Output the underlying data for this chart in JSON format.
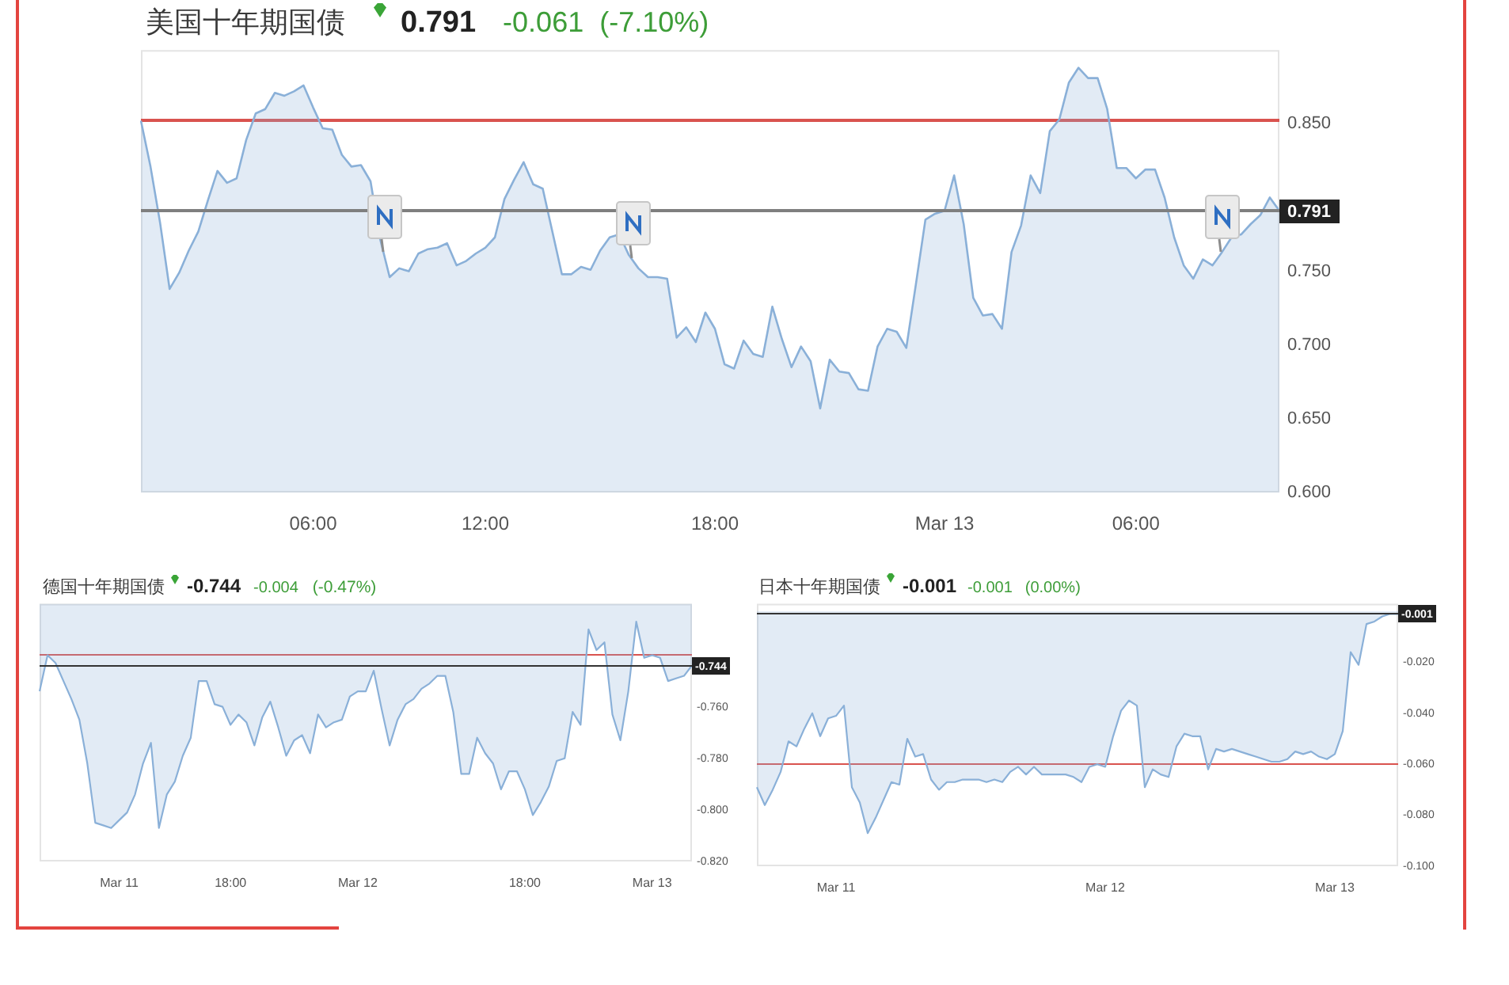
{
  "chart_data": [
    {
      "type": "area",
      "title": "美国十年期国债",
      "annotations": [
        "0.791",
        "-0.061",
        "(-7.10%)"
      ],
      "categories": [
        null,
        null,
        null,
        null,
        null,
        null,
        null,
        null,
        null,
        null,
        null,
        null,
        null,
        null,
        null,
        null,
        null,
        null,
        "06:00",
        null,
        null,
        null,
        null,
        null,
        null,
        null,
        null,
        null,
        null,
        null,
        null,
        null,
        null,
        null,
        null,
        null,
        "12:00",
        null,
        null,
        null,
        null,
        null,
        null,
        null,
        null,
        null,
        null,
        null,
        null,
        null,
        null,
        null,
        null,
        null,
        null,
        null,
        null,
        null,
        null,
        null,
        "18:00",
        null,
        null,
        null,
        null,
        null,
        null,
        null,
        null,
        null,
        null,
        null,
        null,
        null,
        null,
        null,
        null,
        null,
        null,
        null,
        null,
        null,
        null,
        null,
        "Mar 13",
        null,
        null,
        null,
        null,
        null,
        null,
        null,
        null,
        null,
        null,
        null,
        null,
        null,
        null,
        null,
        null,
        null,
        null,
        null,
        "06:00",
        null,
        null,
        null,
        null,
        null,
        null,
        null,
        null,
        null,
        null,
        null,
        null,
        null,
        null,
        null
      ],
      "series": [
        {
          "color": "#8ab0d8",
          "values": [
            0.852,
            0.821,
            0.783,
            0.738,
            0.749,
            0.764,
            0.777,
            0.798,
            0.818,
            0.81,
            0.813,
            0.839,
            0.857,
            0.86,
            0.871,
            0.869,
            0.872,
            0.876,
            0.861,
            0.847,
            0.846,
            0.829,
            0.821,
            0.822,
            0.811,
            0.772,
            0.746,
            0.752,
            0.75,
            0.762,
            0.765,
            0.766,
            0.769,
            0.754,
            0.757,
            0.762,
            0.766,
            0.773,
            0.799,
            0.812,
            0.824,
            0.809,
            0.806,
            0.777,
            0.748,
            0.748,
            0.753,
            0.751,
            0.764,
            0.773,
            0.775,
            0.761,
            0.752,
            0.746,
            0.746,
            0.745,
            0.705,
            0.712,
            0.702,
            0.722,
            0.711,
            0.687,
            0.684,
            0.703,
            0.694,
            0.692,
            0.726,
            0.704,
            0.685,
            0.699,
            0.689,
            0.657,
            0.69,
            0.682,
            0.681,
            0.67,
            0.669,
            0.699,
            0.711,
            0.709,
            0.698,
            0.741,
            0.785,
            0.789,
            0.791,
            0.815,
            0.782,
            0.732,
            0.72,
            0.721,
            0.711,
            0.763,
            0.781,
            0.815,
            0.803,
            0.845,
            0.853,
            0.878,
            0.888,
            0.881,
            0.881,
            0.86,
            0.82,
            0.82,
            0.813,
            0.819,
            0.819,
            0.8,
            0.773,
            0.754,
            0.745,
            0.758,
            0.754,
            0.763,
            0.773,
            0.775,
            0.782,
            0.788,
            0.8,
            0.791
          ]
        }
      ],
      "ylim": [
        0.6,
        0.9
      ],
      "yticks": [
        {
          "value": 0.6,
          "label": "0.600"
        },
        {
          "value": 0.65,
          "label": "0.650"
        },
        {
          "value": 0.7,
          "label": "0.700"
        },
        {
          "value": 0.75,
          "label": "0.750"
        },
        {
          "value": 0.85,
          "label": "0.850"
        }
      ],
      "ref_lines": [
        {
          "axis": "y",
          "value": 0.852,
          "color": "#d9534f"
        },
        {
          "axis": "y",
          "value": 0.791,
          "label": "0.791",
          "color": "#7f7f7f"
        }
      ]
    },
    {
      "type": "area",
      "title": "德国十年期国债",
      "annotations": [
        "-0.744",
        "-0.004",
        "(-0.47%)"
      ],
      "categories": [
        null,
        null,
        null,
        null,
        null,
        null,
        null,
        null,
        null,
        null,
        "Mar 11",
        null,
        null,
        null,
        null,
        null,
        null,
        null,
        null,
        null,
        null,
        null,
        null,
        null,
        "18:00",
        null,
        null,
        null,
        null,
        null,
        null,
        null,
        null,
        null,
        null,
        null,
        null,
        null,
        null,
        null,
        "Mar 12",
        null,
        null,
        null,
        null,
        null,
        null,
        null,
        null,
        null,
        null,
        null,
        null,
        null,
        null,
        null,
        null,
        null,
        null,
        null,
        null,
        "18:00",
        null,
        null,
        null,
        null,
        null,
        null,
        null,
        null,
        null,
        null,
        null,
        null,
        null,
        null,
        null,
        "Mar 13",
        null,
        null,
        null,
        null,
        null
      ],
      "series": [
        {
          "color": "#8ab0d8",
          "values": [
            -0.754,
            -0.74,
            -0.743,
            -0.75,
            -0.757,
            -0.765,
            -0.782,
            -0.805,
            -0.806,
            -0.807,
            -0.804,
            -0.801,
            -0.794,
            -0.782,
            -0.774,
            -0.807,
            -0.794,
            -0.789,
            -0.779,
            -0.772,
            -0.75,
            -0.75,
            -0.759,
            -0.76,
            -0.767,
            -0.763,
            -0.766,
            -0.775,
            -0.764,
            -0.758,
            -0.768,
            -0.779,
            -0.773,
            -0.771,
            -0.778,
            -0.763,
            -0.768,
            -0.766,
            -0.765,
            -0.756,
            -0.754,
            -0.754,
            -0.746,
            -0.761,
            -0.775,
            -0.765,
            -0.759,
            -0.757,
            -0.753,
            -0.751,
            -0.748,
            -0.748,
            -0.762,
            -0.786,
            -0.786,
            -0.772,
            -0.778,
            -0.782,
            -0.792,
            -0.785,
            -0.785,
            -0.792,
            -0.802,
            -0.797,
            -0.791,
            -0.781,
            -0.78,
            -0.762,
            -0.767,
            -0.73,
            -0.738,
            -0.735,
            -0.763,
            -0.773,
            -0.754,
            -0.727,
            -0.741,
            -0.74,
            -0.741,
            -0.75,
            -0.749,
            -0.748,
            -0.744
          ]
        }
      ],
      "ylim": [
        -0.82,
        -0.72
      ],
      "yticks": [
        {
          "value": -0.76,
          "label": "-0.760"
        },
        {
          "value": -0.78,
          "label": "-0.780"
        },
        {
          "value": -0.8,
          "label": "-0.800"
        },
        {
          "value": -0.82,
          "label": "-0.820"
        }
      ],
      "ref_lines": [
        {
          "axis": "y",
          "value": -0.74,
          "color": "#d9534f"
        },
        {
          "axis": "y",
          "value": -0.744,
          "label": "-0.744",
          "color": "#333333"
        }
      ]
    },
    {
      "type": "area",
      "title": "日本十年期国债",
      "annotations": [
        "-0.001",
        "-0.001",
        "(0.00%)"
      ],
      "categories": [
        null,
        null,
        null,
        null,
        null,
        null,
        null,
        null,
        null,
        null,
        "Mar 11",
        null,
        null,
        null,
        null,
        null,
        null,
        null,
        null,
        null,
        null,
        null,
        null,
        null,
        null,
        null,
        null,
        null,
        null,
        null,
        null,
        null,
        null,
        null,
        null,
        null,
        null,
        null,
        null,
        null,
        null,
        null,
        null,
        null,
        "Mar 12",
        null,
        null,
        null,
        null,
        null,
        null,
        null,
        null,
        null,
        null,
        null,
        null,
        null,
        null,
        null,
        null,
        null,
        null,
        null,
        null,
        null,
        null,
        null,
        null,
        null,
        null,
        null,
        null,
        "Mar 13",
        null,
        null,
        null,
        null,
        null,
        null,
        null,
        null
      ],
      "series": [
        {
          "color": "#8ab0d8",
          "values": [
            -0.069,
            -0.076,
            -0.07,
            -0.063,
            -0.051,
            -0.053,
            -0.046,
            -0.04,
            -0.049,
            -0.042,
            -0.041,
            -0.037,
            -0.069,
            -0.075,
            -0.087,
            -0.081,
            -0.074,
            -0.067,
            -0.068,
            -0.05,
            -0.057,
            -0.056,
            -0.066,
            -0.07,
            -0.067,
            -0.067,
            -0.066,
            -0.066,
            -0.066,
            -0.067,
            -0.066,
            -0.067,
            -0.063,
            -0.061,
            -0.064,
            -0.061,
            -0.064,
            -0.064,
            -0.064,
            -0.064,
            -0.065,
            -0.067,
            -0.061,
            -0.06,
            -0.061,
            -0.049,
            -0.039,
            -0.035,
            -0.037,
            -0.069,
            -0.062,
            -0.064,
            -0.065,
            -0.053,
            -0.048,
            -0.049,
            -0.049,
            -0.062,
            -0.054,
            -0.055,
            -0.054,
            -0.055,
            -0.056,
            -0.057,
            -0.058,
            -0.059,
            -0.059,
            -0.058,
            -0.055,
            -0.056,
            -0.055,
            -0.057,
            -0.058,
            -0.056,
            -0.047,
            -0.016,
            -0.021,
            -0.005,
            -0.004,
            -0.002,
            -0.001,
            -0.001
          ]
        }
      ],
      "ylim": [
        -0.1,
        0.003
      ],
      "yticks": [
        {
          "value": -0.02,
          "label": "-0.020"
        },
        {
          "value": -0.04,
          "label": "-0.040"
        },
        {
          "value": -0.06,
          "label": "-0.060"
        },
        {
          "value": -0.08,
          "label": "-0.080"
        },
        {
          "value": -0.1,
          "label": "-0.100"
        }
      ],
      "ref_lines": [
        {
          "axis": "y",
          "value": -0.06,
          "color": "#d9534f"
        },
        {
          "axis": "y",
          "value": -0.001,
          "label": "-0.001",
          "color": "#333333"
        }
      ]
    }
  ]
}
